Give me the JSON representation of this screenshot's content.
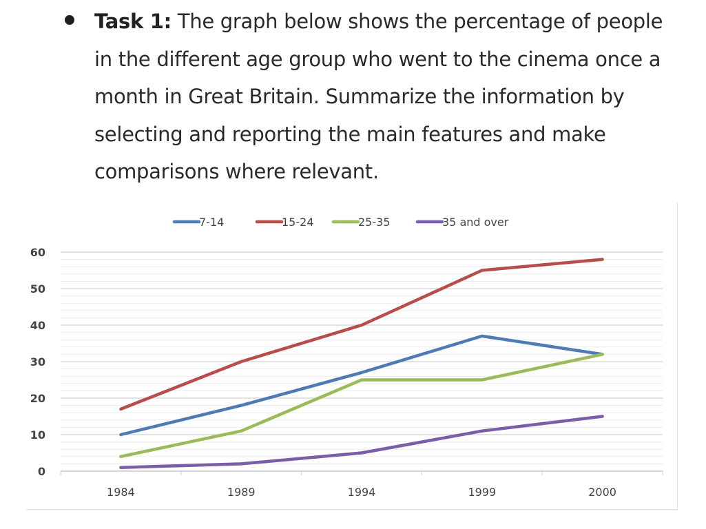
{
  "task": {
    "label": "Task 1:",
    "text": " The graph below shows the percentage of people in the different age group who went to the cinema once a month in Great Britain. Summarize the information by selecting and reporting the main features and make comparisons where relevant."
  },
  "chart_data": {
    "type": "line",
    "title": "",
    "xlabel": "",
    "ylabel": "",
    "categories": [
      "1984",
      "1989",
      "1994",
      "1999",
      "2000"
    ],
    "ylim": [
      0,
      60
    ],
    "yticks": [
      0,
      10,
      20,
      30,
      40,
      50,
      60
    ],
    "ytick_labels": [
      "0",
      "10",
      "20",
      "30",
      "40",
      "50",
      "60"
    ],
    "grid": true,
    "legend_position": "top",
    "series": [
      {
        "name": "7-14",
        "color": "#4f7bb5",
        "values": [
          10,
          18,
          27,
          37,
          32
        ]
      },
      {
        "name": "15-24",
        "color": "#b84e4b",
        "values": [
          17,
          30,
          40,
          55,
          58
        ]
      },
      {
        "name": "25-35",
        "color": "#9bbb59",
        "values": [
          4,
          11,
          25,
          25,
          32
        ]
      },
      {
        "name": "35 and over",
        "color": "#7b5ea8",
        "values": [
          1,
          2,
          5,
          11,
          15
        ]
      }
    ]
  }
}
